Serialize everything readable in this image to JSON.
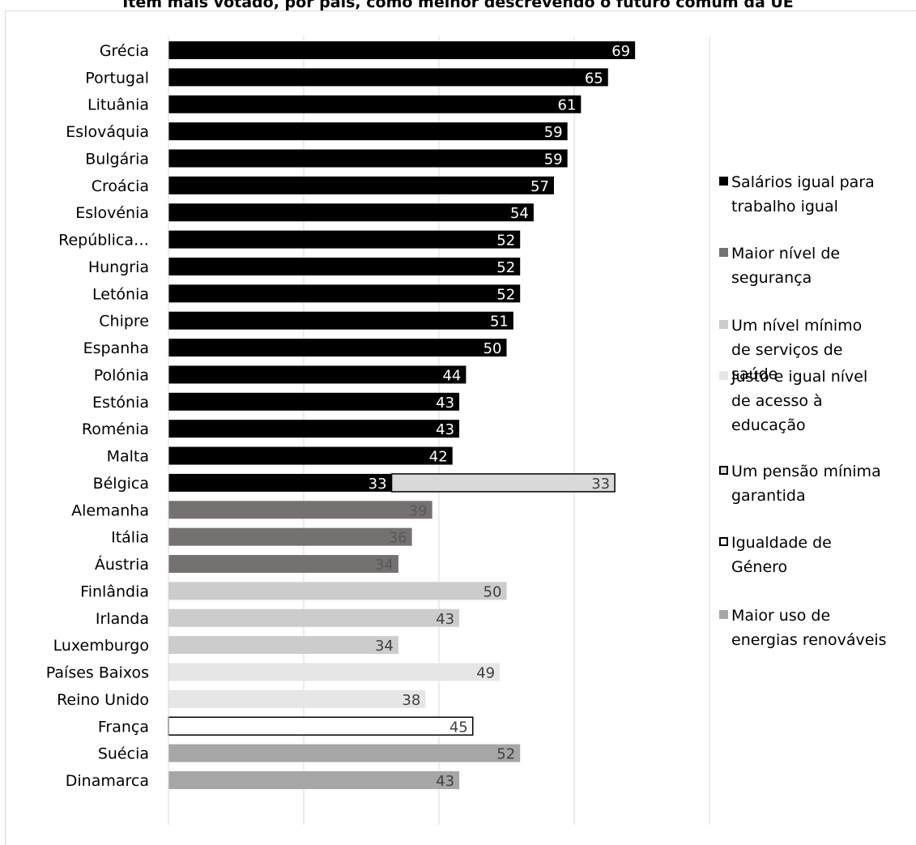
{
  "chart_data": {
    "type": "bar",
    "orientation": "horizontal",
    "stacked": true,
    "title": "Item mais votado, por país, como melhor descrevendo o futuro comum da UE",
    "categories": [
      "Grécia",
      "Portugal",
      "Lituânia",
      "Eslováquia",
      "Bulgária",
      "Croácia",
      "Eslovénia",
      "República…",
      "Hungria",
      "Letónia",
      "Chipre",
      "Espanha",
      "Polónia",
      "Estónia",
      "Roménia",
      "Malta",
      "Bélgica",
      "Alemanha",
      "Itália",
      "Áustria",
      "Finlândia",
      "Irlanda",
      "Luxemburgo",
      "Países Baixos",
      "Reino Unido",
      "França",
      "Suécia",
      "Dinamarca"
    ],
    "series": [
      {
        "name": "Salários igual para trabalho igual",
        "color": "#000000",
        "label_color": "#ffffff",
        "values": [
          69,
          65,
          61,
          59,
          59,
          57,
          54,
          52,
          52,
          52,
          51,
          50,
          44,
          43,
          43,
          42,
          33,
          null,
          null,
          null,
          null,
          null,
          null,
          null,
          null,
          null,
          null,
          null
        ]
      },
      {
        "name": "Maior nível de segurança",
        "color": "#767171",
        "label_color": "#595959",
        "values": [
          null,
          null,
          null,
          null,
          null,
          null,
          null,
          null,
          null,
          null,
          null,
          null,
          null,
          null,
          null,
          null,
          null,
          39,
          36,
          34,
          null,
          null,
          null,
          null,
          null,
          null,
          null,
          null
        ]
      },
      {
        "name": "Um nível mínimo de serviços de saúde",
        "color": "#cccccc",
        "label_color": "#404040",
        "values": [
          null,
          null,
          null,
          null,
          null,
          null,
          null,
          null,
          null,
          null,
          null,
          null,
          null,
          null,
          null,
          null,
          null,
          null,
          null,
          null,
          50,
          43,
          34,
          null,
          null,
          null,
          null,
          null
        ]
      },
      {
        "name": "Justo e igual nível de acesso à educação",
        "color": "#e6e6e6",
        "label_color": "#404040",
        "values": [
          null,
          null,
          null,
          null,
          null,
          null,
          null,
          null,
          null,
          null,
          null,
          null,
          null,
          null,
          null,
          null,
          null,
          null,
          null,
          null,
          null,
          null,
          null,
          49,
          38,
          null,
          null,
          null
        ]
      },
      {
        "name": "Um pensão mínima garantida",
        "color": "#d9d9d9",
        "stroke": "#000000",
        "label_color": "#404040",
        "values": [
          null,
          null,
          null,
          null,
          null,
          null,
          null,
          null,
          null,
          null,
          null,
          null,
          null,
          null,
          null,
          null,
          33,
          null,
          null,
          null,
          null,
          null,
          null,
          null,
          null,
          null,
          null,
          null
        ]
      },
      {
        "name": "Igualdade de Género",
        "color": "#ffffff",
        "stroke": "#000000",
        "label_color": "#404040",
        "values": [
          null,
          null,
          null,
          null,
          null,
          null,
          null,
          null,
          null,
          null,
          null,
          null,
          null,
          null,
          null,
          null,
          null,
          null,
          null,
          null,
          null,
          null,
          null,
          null,
          null,
          45,
          null,
          null
        ]
      },
      {
        "name": "Maior uso de energias renováveis",
        "color": "#a6a6a6",
        "label_color": "#404040",
        "values": [
          null,
          null,
          null,
          null,
          null,
          null,
          null,
          null,
          null,
          null,
          null,
          null,
          null,
          null,
          null,
          null,
          null,
          null,
          null,
          null,
          null,
          null,
          null,
          null,
          null,
          null,
          52,
          43
        ]
      }
    ],
    "xlim": [
      0,
      80
    ],
    "gridlines": "vertical",
    "legend_position": "right"
  }
}
